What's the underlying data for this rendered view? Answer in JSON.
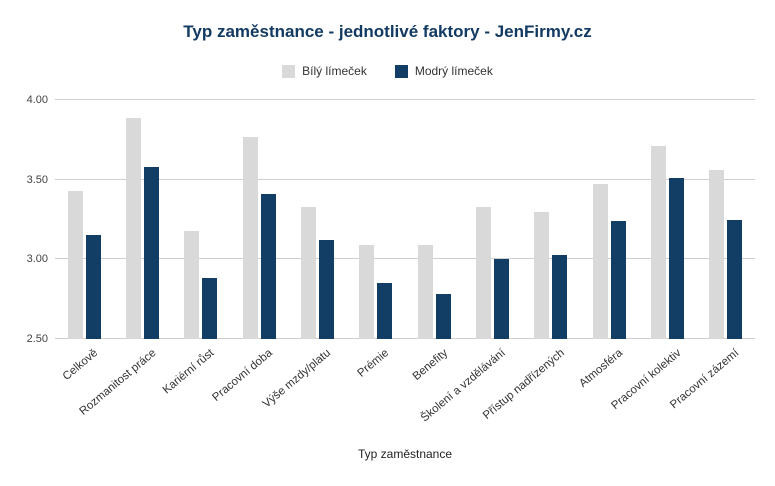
{
  "header": {
    "title": "Typ zaměstnance - jednotlivé faktory - JenFirmy.cz"
  },
  "legend": [
    {
      "label": "Bílý límeček",
      "color": "#d9d9d9"
    },
    {
      "label": "Modrý límeček",
      "color": "#123e66"
    }
  ],
  "colors": {
    "title": "#123a62",
    "gridline": "#cfcfcf",
    "white_collar_bar": "#d9d9d9",
    "blue_collar_bar": "#123e66"
  },
  "chart_data": {
    "type": "bar",
    "title": "Typ zaměstnance - jednotlivé faktory - JenFirmy.cz",
    "xlabel": "Typ zaměstnance",
    "ylabel": "",
    "ylim": [
      2.5,
      4.0
    ],
    "yticks": [
      2.5,
      3.0,
      3.5,
      4.0
    ],
    "ytick_labels": [
      "2.50",
      "3.00",
      "3.50",
      "4.00"
    ],
    "grid": true,
    "legend_position": "top",
    "categories": [
      "Celkově",
      "Rozmanitost práce",
      "Kariérní růst",
      "Pracovní doba",
      "Výše mzdy/platu",
      "Prémie",
      "Benefity",
      "Školení a vzdělávání",
      "Přístup nadřízených",
      "Atmosféra",
      "Pracovní kolektiv",
      "Pracovní zázemí"
    ],
    "series": [
      {
        "name": "Bílý límeček",
        "color": "#d9d9d9",
        "values": [
          3.43,
          3.89,
          3.18,
          3.77,
          3.33,
          3.09,
          3.09,
          3.33,
          3.3,
          3.47,
          3.71,
          3.56
        ]
      },
      {
        "name": "Modrý límeček",
        "color": "#123e66",
        "values": [
          3.15,
          3.58,
          2.88,
          3.41,
          3.12,
          2.85,
          2.78,
          3.0,
          3.03,
          3.24,
          3.51,
          3.25
        ]
      }
    ]
  }
}
